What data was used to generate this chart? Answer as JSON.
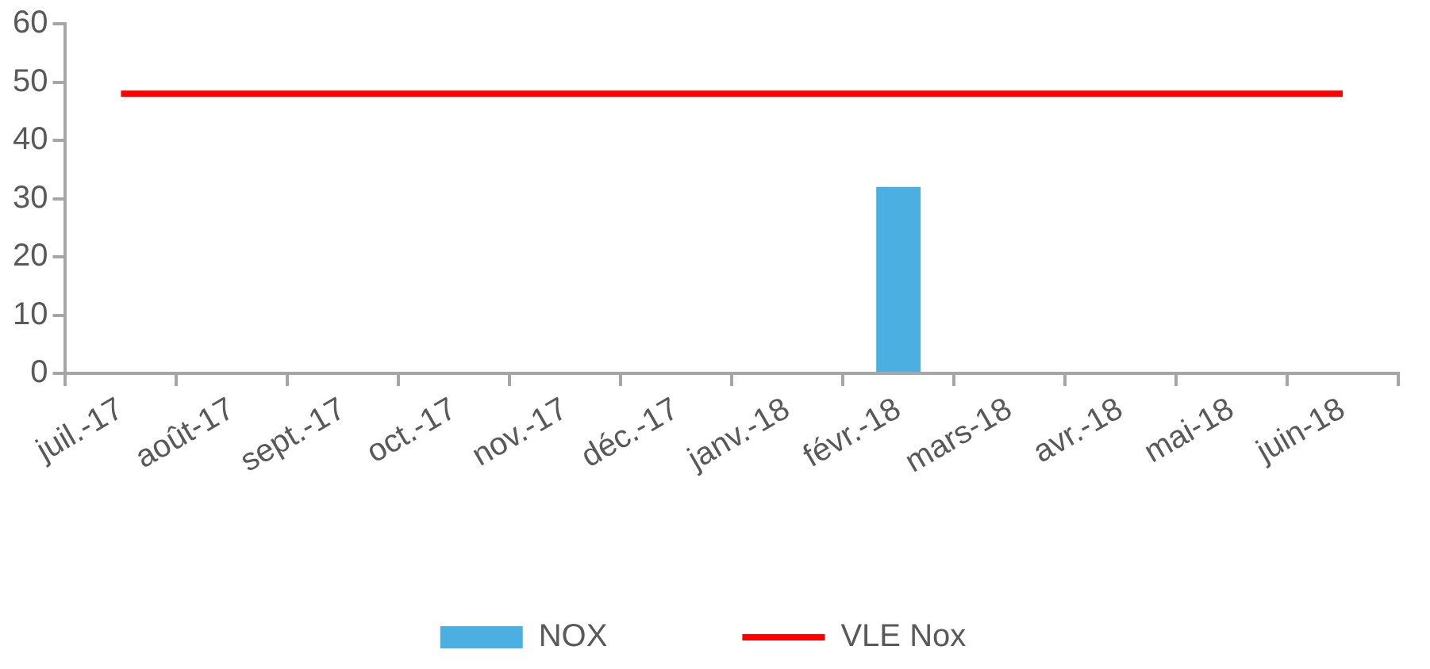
{
  "chart_data": {
    "type": "bar",
    "categories": [
      "juil.-17",
      "août-17",
      "sept.-17",
      "oct.-17",
      "nov.-17",
      "déc.-17",
      "janv.-18",
      "févr.-18",
      "mars-18",
      "avr.-18",
      "mai-18",
      "juin-18"
    ],
    "series": [
      {
        "name": "NOX",
        "color": "#4bafe2",
        "values": [
          0,
          0,
          0,
          0,
          0,
          0,
          0,
          32,
          0,
          0,
          0,
          0
        ]
      },
      {
        "name": "VLE Nox",
        "type": "line",
        "color": "#ff0000",
        "values": [
          48,
          48,
          48,
          48,
          48,
          48,
          48,
          48,
          48,
          48,
          48,
          48
        ]
      }
    ],
    "ylim": [
      0,
      60
    ],
    "yticks": [
      0,
      10,
      20,
      30,
      40,
      50,
      60
    ],
    "grid": false,
    "legend": "bottom",
    "marker": "none"
  }
}
